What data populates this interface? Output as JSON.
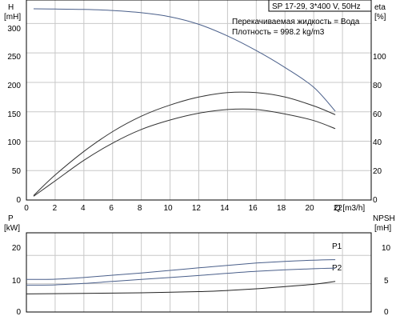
{
  "chart_data": [
    {
      "type": "line",
      "name_box": "SP 17-29, 3*400 V, 50Hz",
      "annotations": [
        "Перекачиваемая жидкость = Вода",
        "Плотность = 998.2 kg/m3"
      ],
      "xlabel": "Q [m3/h]",
      "xlim": [
        0,
        24
      ],
      "x_ticks": [
        "0",
        "2",
        "4",
        "6",
        "8",
        "10",
        "12",
        "14",
        "16",
        "18",
        "20",
        "22"
      ],
      "left_axis": {
        "label_top": "H",
        "label_unit": "[mH]",
        "ylim": [
          0,
          340
        ],
        "ticks": [
          "0",
          "50",
          "100",
          "150",
          "200",
          "250",
          "300"
        ]
      },
      "right_axis": {
        "label_top": "eta",
        "label_unit": "[%]",
        "ylim": [
          0,
          136
        ],
        "ticks": [
          "0",
          "20",
          "40",
          "60",
          "80",
          "100"
        ]
      },
      "series": [
        {
          "axis": "left",
          "color": "#4a5f8a",
          "points": [
            [
              0.5,
              325
            ],
            [
              2,
              324.7
            ],
            [
              4,
              323.9
            ],
            [
              6,
              322.2
            ],
            [
              8,
              318.4
            ],
            [
              10,
              311.4
            ],
            [
              12,
              298.7
            ],
            [
              14,
              278.9
            ],
            [
              16,
              254.1
            ],
            [
              18,
              225.2
            ],
            [
              20,
              191.6
            ],
            [
              21.5,
              151
            ]
          ]
        },
        {
          "axis": "right",
          "color": "#333333",
          "points": [
            [
              0.5,
              3
            ],
            [
              2,
              17
            ],
            [
              4,
              33
            ],
            [
              6,
              46.5
            ],
            [
              8,
              57
            ],
            [
              10,
              64.6
            ],
            [
              12,
              70
            ],
            [
              14,
              73
            ],
            [
              16,
              73
            ],
            [
              18,
              70
            ],
            [
              20,
              64
            ],
            [
              21.5,
              58
            ]
          ]
        },
        {
          "axis": "right",
          "color": "#333333",
          "points": [
            [
              0.5,
              2.5
            ],
            [
              2,
              13
            ],
            [
              4,
              27
            ],
            [
              6,
              38.7
            ],
            [
              8,
              48
            ],
            [
              10,
              54.4
            ],
            [
              12,
              59
            ],
            [
              14,
              61.5
            ],
            [
              16,
              61.5
            ],
            [
              18,
              58.5
            ],
            [
              20,
              54
            ],
            [
              21.5,
              48.5
            ]
          ]
        }
      ]
    },
    {
      "type": "line",
      "xlim": [
        0,
        24
      ],
      "left_axis": {
        "label_top": "P",
        "label_unit": "[kW]",
        "ylim": [
          0,
          28
        ],
        "ticks": [
          "0",
          "10",
          "20"
        ]
      },
      "right_axis": {
        "label_top": "NPSH",
        "label_unit": "[mH]",
        "ylim": [
          0,
          14
        ],
        "ticks": [
          "0",
          "5",
          "10"
        ]
      },
      "series": [
        {
          "name": "P1",
          "axis": "left",
          "color": "#4a5f8a",
          "points": [
            [
              0,
              11.5
            ],
            [
              2,
              11.6
            ],
            [
              4,
              12.2
            ],
            [
              6,
              13
            ],
            [
              8,
              13.8
            ],
            [
              10,
              14.7
            ],
            [
              12,
              15.6
            ],
            [
              14,
              16.5
            ],
            [
              16,
              17.3
            ],
            [
              18,
              17.9
            ],
            [
              20,
              18.3
            ],
            [
              21.5,
              18.5
            ]
          ]
        },
        {
          "name": "P2",
          "axis": "left",
          "color": "#4a5f8a",
          "points": [
            [
              0,
              9.5
            ],
            [
              2,
              9.6
            ],
            [
              4,
              10.1
            ],
            [
              6,
              10.8
            ],
            [
              8,
              11.5
            ],
            [
              10,
              12.2
            ],
            [
              12,
              12.9
            ],
            [
              14,
              13.7
            ],
            [
              16,
              14.4
            ],
            [
              18,
              14.9
            ],
            [
              20,
              15.3
            ],
            [
              21.5,
              15.5
            ]
          ]
        },
        {
          "axis": "right",
          "color": "#222222",
          "points": [
            [
              0,
              3.2
            ],
            [
              4,
              3.3
            ],
            [
              8,
              3.4
            ],
            [
              12,
              3.6
            ],
            [
              14,
              3.8
            ],
            [
              16,
              4.1
            ],
            [
              18,
              4.5
            ],
            [
              20,
              4.9
            ],
            [
              21.5,
              5.4
            ]
          ]
        }
      ]
    }
  ]
}
